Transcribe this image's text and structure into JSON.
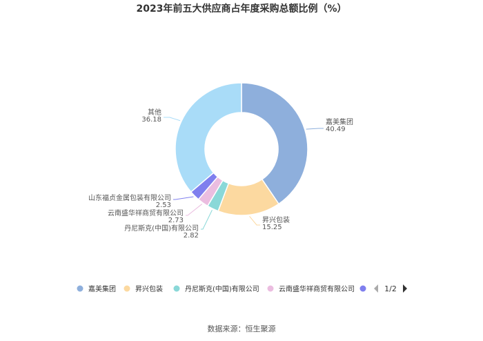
{
  "chart_data": {
    "type": "pie",
    "title": "2023年前五大供应商占年度采购总额比例（%）",
    "categories": [
      "嘉美集团",
      "昇兴包装",
      "丹尼斯克(中国)有限公司",
      "云南盛华祥商贸有限公司",
      "山东福贞金属包装有限公司",
      "其他"
    ],
    "values": [
      40.49,
      15.25,
      2.82,
      2.73,
      2.53,
      36.18
    ],
    "colors": [
      "#8eafdc",
      "#fcd9a0",
      "#8ad8d8",
      "#ebbde0",
      "#7f7fee",
      "#a9dcf8"
    ],
    "legend": {
      "position": "bottom",
      "page": "1/2"
    }
  },
  "source": "数据来源：恒生聚源"
}
